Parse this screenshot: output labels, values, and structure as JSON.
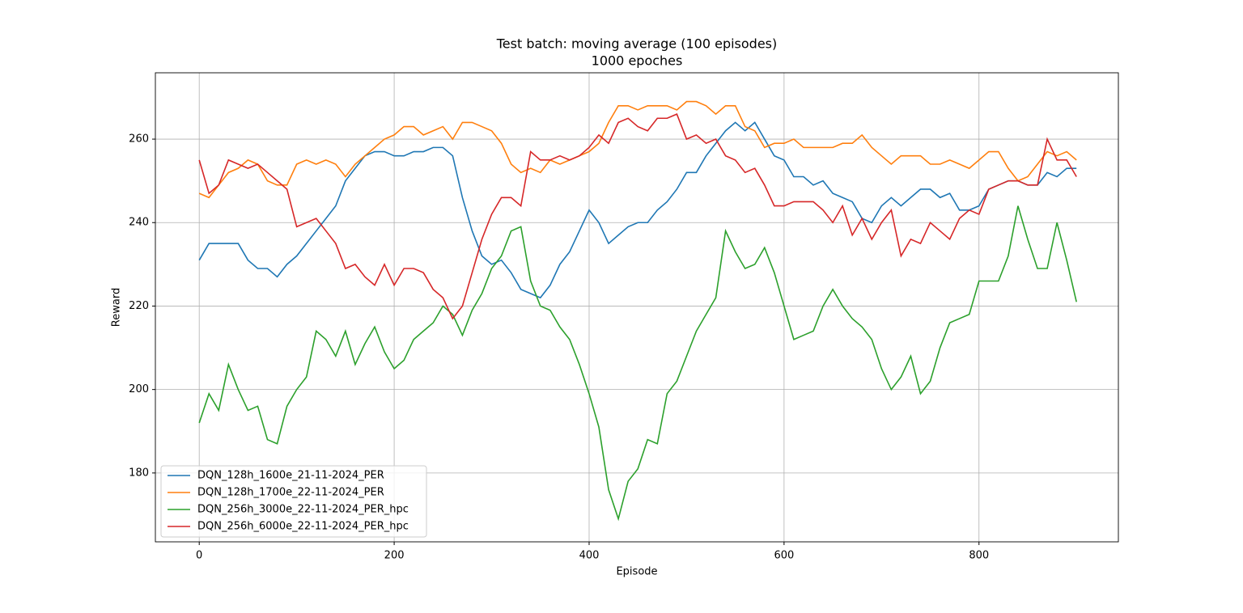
{
  "chart_data": {
    "type": "line",
    "title": "Test batch: moving average (100 episodes)",
    "subtitle": "1000 epoches",
    "xlabel": "Episode",
    "ylabel": "Reward",
    "x": [
      0,
      10,
      20,
      30,
      40,
      50,
      60,
      70,
      80,
      90,
      100,
      110,
      120,
      130,
      140,
      150,
      160,
      170,
      180,
      190,
      200,
      210,
      220,
      230,
      240,
      250,
      260,
      270,
      280,
      290,
      300,
      310,
      320,
      330,
      340,
      350,
      360,
      370,
      380,
      390,
      400,
      410,
      420,
      430,
      440,
      450,
      460,
      470,
      480,
      490,
      500,
      510,
      520,
      530,
      540,
      550,
      560,
      570,
      580,
      590,
      600,
      610,
      620,
      630,
      640,
      650,
      660,
      670,
      680,
      690,
      700,
      710,
      720,
      730,
      740,
      750,
      760,
      770,
      780,
      790,
      800,
      810,
      820,
      830,
      840,
      850,
      860,
      870,
      880,
      890,
      900
    ],
    "series": [
      {
        "name": "DQN_128h_1600e_21-11-2024_PER",
        "color": "#1f77b4",
        "values": [
          231,
          235,
          235,
          235,
          235,
          231,
          229,
          229,
          227,
          230,
          232,
          235,
          238,
          241,
          244,
          250,
          253,
          256,
          257,
          257,
          256,
          256,
          257,
          257,
          258,
          258,
          256,
          246,
          238,
          232,
          230,
          231,
          228,
          224,
          223,
          222,
          225,
          230,
          233,
          238,
          243,
          240,
          235,
          237,
          239,
          240,
          240,
          243,
          245,
          248,
          252,
          252,
          256,
          259,
          262,
          264,
          262,
          264,
          260,
          256,
          255,
          251,
          251,
          249,
          250,
          247,
          246,
          245,
          241,
          240,
          244,
          246,
          244,
          246,
          248,
          248,
          246,
          247,
          243,
          243,
          244,
          248,
          249,
          250,
          250,
          249,
          249,
          252,
          251,
          253,
          253
        ]
      },
      {
        "name": "DQN_128h_1700e_22-11-2024_PER",
        "color": "#ff7f0e",
        "values": [
          247,
          246,
          249,
          252,
          253,
          255,
          254,
          250,
          249,
          249,
          254,
          255,
          254,
          255,
          254,
          251,
          254,
          256,
          258,
          260,
          261,
          263,
          263,
          261,
          262,
          263,
          260,
          264,
          264,
          263,
          262,
          259,
          254,
          252,
          253,
          252,
          255,
          254,
          255,
          256,
          257,
          259,
          264,
          268,
          268,
          267,
          268,
          268,
          268,
          267,
          269,
          269,
          268,
          266,
          268,
          268,
          263,
          262,
          258,
          259,
          259,
          260,
          258,
          258,
          258,
          258,
          259,
          259,
          261,
          258,
          256,
          254,
          256,
          256,
          256,
          254,
          254,
          255,
          254,
          253,
          255,
          257,
          257,
          253,
          250,
          251,
          254,
          257,
          256,
          257,
          255
        ]
      },
      {
        "name": "DQN_256h_3000e_22-11-2024_PER_hpc",
        "color": "#2ca02c",
        "values": [
          192,
          199,
          195,
          206,
          200,
          195,
          196,
          188,
          187,
          196,
          200,
          203,
          214,
          212,
          208,
          214,
          206,
          211,
          215,
          209,
          205,
          207,
          212,
          214,
          216,
          220,
          218,
          213,
          219,
          223,
          229,
          232,
          238,
          239,
          226,
          220,
          219,
          215,
          212,
          206,
          199,
          191,
          176,
          169,
          178,
          181,
          188,
          187,
          199,
          202,
          208,
          214,
          218,
          222,
          238,
          233,
          229,
          230,
          234,
          228,
          220,
          212,
          213,
          214,
          220,
          224,
          220,
          217,
          215,
          212,
          205,
          200,
          203,
          208,
          199,
          202,
          210,
          216,
          217,
          218,
          226,
          226,
          226,
          232,
          244,
          236,
          229,
          229,
          240,
          231,
          221
        ]
      },
      {
        "name": "DQN_256h_6000e_22-11-2024_PER_hpc",
        "color": "#d62728",
        "values": [
          255,
          247,
          249,
          255,
          254,
          253,
          254,
          252,
          250,
          248,
          239,
          240,
          241,
          238,
          235,
          229,
          230,
          227,
          225,
          230,
          225,
          229,
          229,
          228,
          224,
          222,
          217,
          220,
          228,
          236,
          242,
          246,
          246,
          244,
          257,
          255,
          255,
          256,
          255,
          256,
          258,
          261,
          259,
          264,
          265,
          263,
          262,
          265,
          265,
          266,
          260,
          261,
          259,
          260,
          256,
          255,
          252,
          253,
          249,
          244,
          244,
          245,
          245,
          245,
          243,
          240,
          244,
          237,
          241,
          236,
          240,
          243,
          232,
          236,
          235,
          240,
          238,
          236,
          241,
          243,
          242,
          248,
          249,
          250,
          250,
          249,
          249,
          260,
          255,
          255,
          251
        ]
      }
    ],
    "xlim": [
      -45,
      943
    ],
    "xticks": [
      0,
      200,
      400,
      600,
      800
    ],
    "ylim": [
      163.5,
      275.9
    ],
    "yticks": [
      180,
      200,
      220,
      240,
      260
    ],
    "grid": true,
    "legend": "lower left"
  }
}
